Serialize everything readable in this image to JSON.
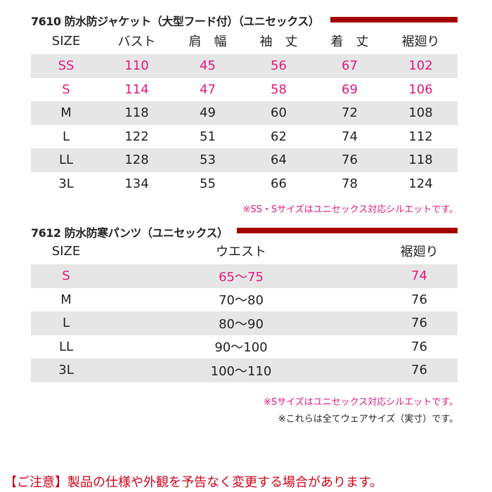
{
  "jacket": {
    "title": "7610 防水防ジャケット（大型フード付）（ユニセックス）",
    "headers": [
      "SIZE",
      "バスト",
      "肩　幅",
      "袖　丈",
      "着　丈",
      "裾廻り"
    ],
    "rows": [
      [
        "SS",
        "110",
        "45",
        "56",
        "67",
        "102"
      ],
      [
        "S",
        "114",
        "47",
        "58",
        "69",
        "106"
      ],
      [
        "M",
        "118",
        "49",
        "60",
        "72",
        "108"
      ],
      [
        "L",
        "122",
        "51",
        "62",
        "74",
        "112"
      ],
      [
        "LL",
        "128",
        "53",
        "64",
        "76",
        "118"
      ],
      [
        "3L",
        "134",
        "55",
        "66",
        "78",
        "124"
      ]
    ],
    "note": "※SS・Sサイズはユニセックス対応シルエットです。"
  },
  "pants": {
    "title": "7612 防水防寒パンツ（ユニセックス）",
    "headers": [
      "SIZE",
      "ウエスト",
      "裾廻り"
    ],
    "rows": [
      [
        "S",
        "65〜75",
        "74"
      ],
      [
        "M",
        "70〜80",
        "76"
      ],
      [
        "L",
        "80〜90",
        "76"
      ],
      [
        "LL",
        "90〜100",
        "76"
      ],
      [
        "3L",
        "100〜110",
        "76"
      ]
    ],
    "note1": "※Sサイズはユニセックス対応シルエットです。",
    "note2": "※これらは全てウェアサイズ（実寸）です。"
  },
  "footer": "【ご注意】製品の仕様や外観を予告なく変更する場合があります。",
  "colors": {
    "accent": "#e0197d",
    "bar": "#a50000",
    "row_gray": "#e6e6e6"
  }
}
